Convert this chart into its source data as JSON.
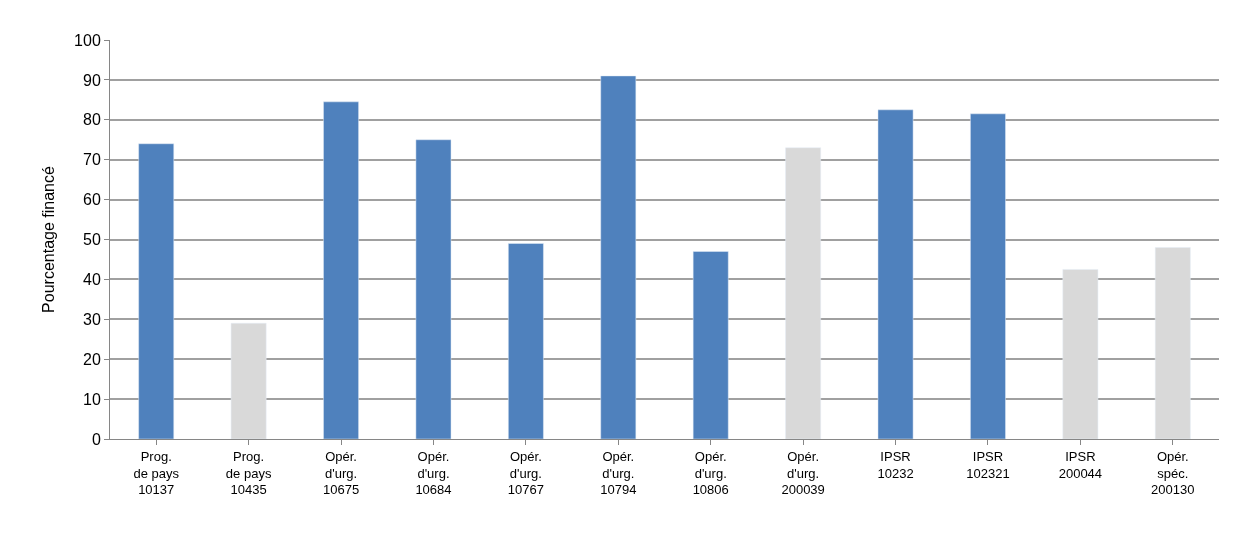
{
  "chart_data": {
    "type": "bar",
    "ylabel": "Pourcentage financé",
    "categories": [
      "Prog.\nde pays\n10137",
      "Prog.\nde pays\n10435",
      "Opér.\nd'urg.\n10675",
      "Opér.\nd'urg.\n10684",
      "Opér.\nd'urg.\n10767",
      "Opér.\nd'urg.\n10794",
      "Opér.\nd'urg.\n10806",
      "Opér.\nd'urg.\n200039",
      "IPSR\n10232",
      "IPSR\n102321",
      "IPSR\n200044",
      "Opér.\nspéc.\n200130"
    ],
    "values": [
      74,
      29,
      84.5,
      75,
      49,
      91,
      47,
      73,
      82.5,
      81.5,
      42.5,
      48
    ],
    "colors": [
      "#4f81bd",
      "#d9d9d9",
      "#4f81bd",
      "#4f81bd",
      "#4f81bd",
      "#4f81bd",
      "#4f81bd",
      "#d9d9d9",
      "#4f81bd",
      "#4f81bd",
      "#d9d9d9",
      "#d9d9d9"
    ],
    "ylim": [
      0,
      100
    ],
    "yticks": [
      0,
      10,
      20,
      30,
      40,
      50,
      60,
      70,
      80,
      90,
      100
    ],
    "grid": "y",
    "legend": false
  }
}
